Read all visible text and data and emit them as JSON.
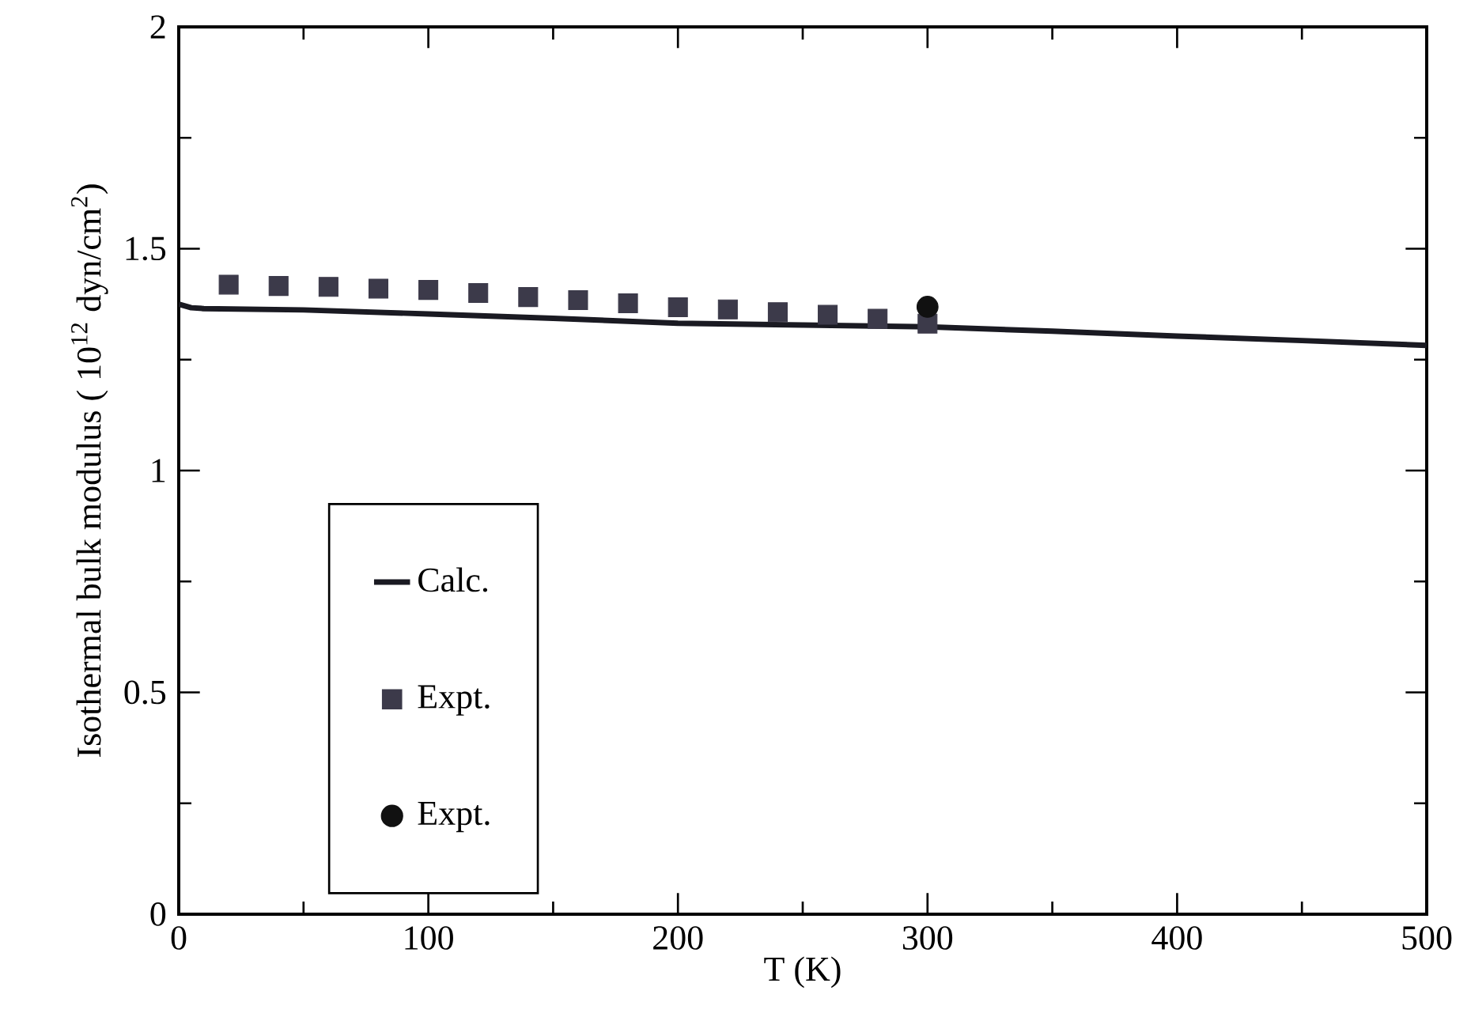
{
  "chart_data": {
    "type": "line",
    "xlabel": "T (K)",
    "ylabel": "Isothermal bulk modulus ( 10$^{12}$ dyn/cm$^{2}$)",
    "xlim": [
      0,
      500
    ],
    "ylim": [
      0,
      2
    ],
    "xticks": [
      0,
      100,
      200,
      300,
      400,
      500
    ],
    "yticks": [
      0,
      0.5,
      1,
      1.5,
      2
    ],
    "legend": "bottom left",
    "grid": false,
    "series": [
      {
        "name": "Calc.",
        "color": "#1a1a22",
        "marker": "none",
        "x": [
          0,
          5,
          10,
          50,
          100,
          150,
          200,
          250,
          300,
          350,
          400,
          450,
          500
        ],
        "values": [
          1.375,
          1.367,
          1.365,
          1.362,
          1.353,
          1.343,
          1.332,
          1.328,
          1.324,
          1.314,
          1.303,
          1.293,
          1.282
        ]
      },
      {
        "name": "Expt.",
        "type": "scatter",
        "color": "#3c3a4a",
        "marker": "square",
        "x": [
          20,
          40,
          60,
          80,
          100,
          120,
          140,
          160,
          180,
          200,
          220,
          240,
          260,
          280,
          300
        ],
        "values": [
          1.419,
          1.416,
          1.414,
          1.41,
          1.407,
          1.4,
          1.391,
          1.384,
          1.377,
          1.368,
          1.363,
          1.357,
          1.351,
          1.342,
          1.331
        ]
      },
      {
        "name": "Expt.",
        "type": "scatter",
        "color": "#111111",
        "marker": "circle",
        "x": [
          300
        ],
        "values": [
          1.369
        ]
      }
    ]
  }
}
